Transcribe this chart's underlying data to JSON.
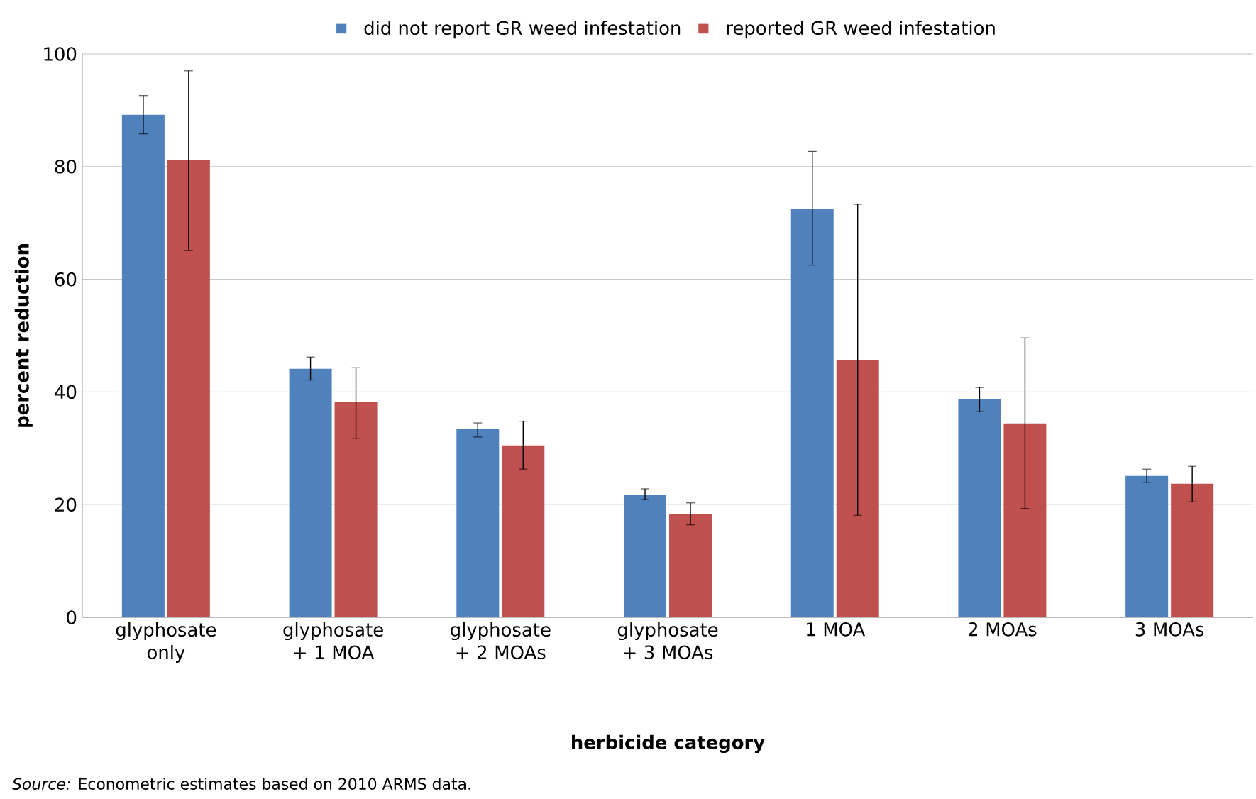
{
  "chart_data": {
    "type": "bar",
    "xlabel": "herbicide category",
    "ylabel": "percent reduction",
    "categories": [
      "glyphosate only",
      "glyphosate + 1 MOA",
      "glyphosate + 2 MOAs",
      "glyphosate + 3 MOAs",
      "1 MOA",
      "2 MOAs",
      "3 MOAs"
    ],
    "series": [
      {
        "name": "did not report GR weed infestation",
        "color": "#4f81bd",
        "values": [
          89.2,
          44.1,
          33.4,
          21.8,
          72.5,
          38.7,
          25.1
        ],
        "errors": [
          [
            85.8,
            92.6
          ],
          [
            42.1,
            46.2
          ],
          [
            32.0,
            34.5
          ],
          [
            20.9,
            22.8
          ],
          [
            62.5,
            82.7
          ],
          [
            36.5,
            40.8
          ],
          [
            23.9,
            26.3
          ]
        ]
      },
      {
        "name": "reported GR weed infestation",
        "color": "#c0504d",
        "values": [
          81.1,
          38.2,
          30.5,
          18.4,
          45.6,
          34.4,
          23.7
        ],
        "errors": [
          [
            65.1,
            97.0
          ],
          [
            31.7,
            44.3
          ],
          [
            26.3,
            34.8
          ],
          [
            16.4,
            20.3
          ],
          [
            18.1,
            73.3
          ],
          [
            19.3,
            49.6
          ],
          [
            20.5,
            26.8
          ]
        ]
      }
    ],
    "ylim": [
      0,
      100
    ],
    "yticks": [
      0,
      20,
      40,
      60,
      80,
      100
    ],
    "grid": "y",
    "legend": "top",
    "annotations": [
      "*Source:* Econometric estimates based on 2010 ARMS data."
    ]
  }
}
